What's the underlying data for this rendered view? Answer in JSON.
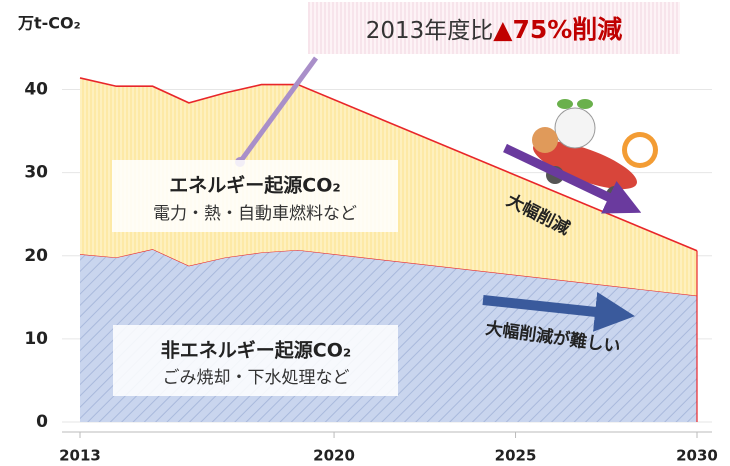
{
  "chart_data": {
    "type": "stacked-area",
    "y_label": "万t-CO₂",
    "x": [
      2013,
      2014,
      2015,
      2016,
      2017,
      2018,
      2019,
      2030
    ],
    "xlim": [
      2013,
      2030
    ],
    "xticks": [
      2013,
      2020,
      2025,
      2030
    ],
    "ylim": [
      0,
      45
    ],
    "yticks": [
      0,
      10,
      20,
      30,
      40
    ],
    "grid": true,
    "series": [
      {
        "name": "非エネルギー起源CO₂",
        "sub": "ごみ焼却・下水処理など",
        "color": "#c9d5ee",
        "values": [
          20.2,
          19.8,
          20.8,
          18.8,
          19.8,
          20.4,
          20.7,
          15.2
        ]
      },
      {
        "name": "エネルギー起源CO₂",
        "sub": "電力・熱・自動車燃料など",
        "color": "#fde9a6",
        "values": [
          21.2,
          20.6,
          19.6,
          19.6,
          19.8,
          20.2,
          19.9,
          5.4
        ]
      }
    ],
    "callout": {
      "lead": "2013年度比",
      "emphasis": "▲75%削減"
    },
    "annotations": [
      "大幅削減",
      "大幅削減が難しい"
    ]
  }
}
